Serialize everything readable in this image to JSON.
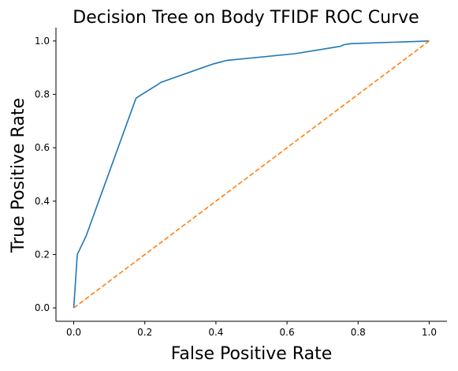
{
  "chart_data": {
    "type": "line",
    "title": "Decision Tree on Body TFIDF ROC Curve",
    "xlabel": "False Positive Rate",
    "ylabel": "True Positive Rate",
    "xlim": [
      -0.05,
      1.05
    ],
    "ylim": [
      -0.05,
      1.05
    ],
    "xticks": [
      0.0,
      0.2,
      0.4,
      0.6,
      0.8,
      1.0
    ],
    "xtick_labels": [
      "0.0",
      "0.2",
      "0.4",
      "0.6",
      "0.8",
      "1.0"
    ],
    "yticks": [
      0.0,
      0.2,
      0.4,
      0.6,
      0.8,
      1.0
    ],
    "ytick_labels": [
      "0.0",
      "0.2",
      "0.4",
      "0.6",
      "0.8",
      "1.0"
    ],
    "grid": false,
    "spines": [
      "left",
      "bottom"
    ],
    "series": [
      {
        "style": "solid",
        "color": "#1f77b4",
        "x": [
          0.0,
          0.01,
          0.035,
          0.175,
          0.18,
          0.24,
          0.245,
          0.39,
          0.41,
          0.43,
          0.62,
          0.635,
          0.75,
          0.76,
          0.78,
          1.0
        ],
        "y": [
          0.0,
          0.2,
          0.27,
          0.785,
          0.79,
          0.84,
          0.845,
          0.913,
          0.92,
          0.927,
          0.952,
          0.955,
          0.98,
          0.986,
          0.99,
          1.0
        ]
      },
      {
        "style": "dashed",
        "color": "#ff7f0e",
        "x": [
          0.0,
          1.0
        ],
        "y": [
          0.0,
          1.0
        ]
      }
    ]
  }
}
